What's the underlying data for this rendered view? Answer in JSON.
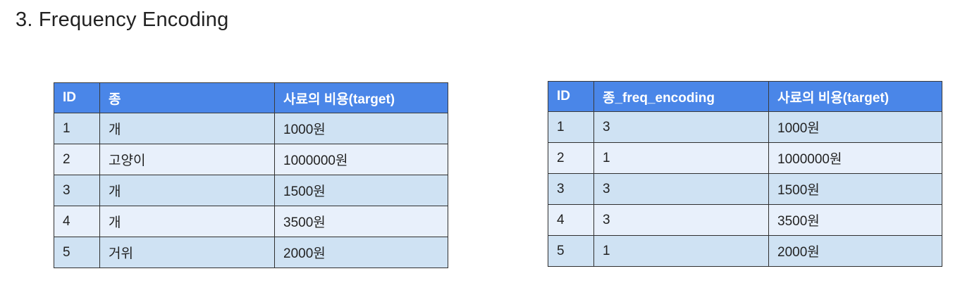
{
  "title": "3. Frequency Encoding",
  "colors": {
    "header_bg": "#4a86e8",
    "row_odd": "#cfe2f3",
    "row_even": "#e8f0fb"
  },
  "table_left": {
    "headers": [
      "ID",
      "종",
      "사료의 비용(target)"
    ],
    "rows": [
      [
        "1",
        "개",
        "1000원"
      ],
      [
        "2",
        "고양이",
        "1000000원"
      ],
      [
        "3",
        "개",
        "1500원"
      ],
      [
        "4",
        "개",
        "3500원"
      ],
      [
        "5",
        "거위",
        "2000원"
      ]
    ]
  },
  "table_right": {
    "headers": [
      "ID",
      "종_freq_encoding",
      "사료의 비용(target)"
    ],
    "rows": [
      [
        "1",
        "3",
        "1000원"
      ],
      [
        "2",
        "1",
        "1000000원"
      ],
      [
        "3",
        "3",
        "1500원"
      ],
      [
        "4",
        "3",
        "3500원"
      ],
      [
        "5",
        "1",
        "2000원"
      ]
    ]
  }
}
